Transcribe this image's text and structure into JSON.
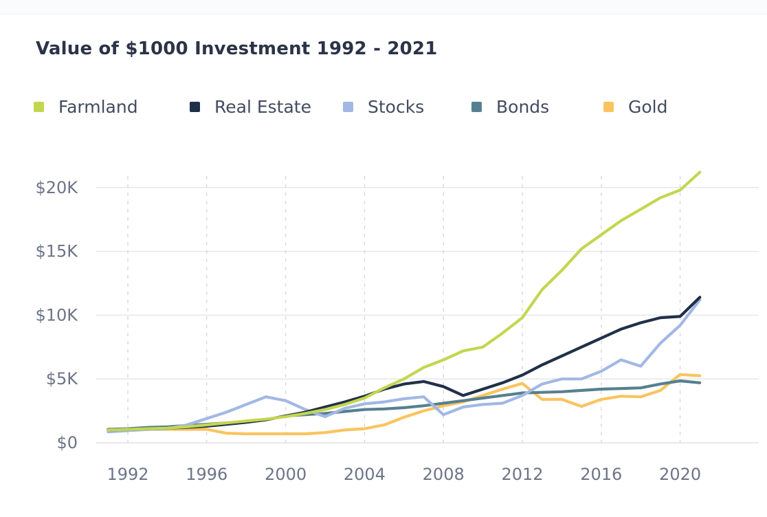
{
  "chart_data": {
    "type": "line",
    "title": "Value of $1000 Investment 1992 - 2021",
    "values_unit": "USD thousands",
    "x": [
      1991,
      1992,
      1993,
      1994,
      1995,
      1996,
      1997,
      1998,
      1999,
      2000,
      2001,
      2002,
      2003,
      2004,
      2005,
      2006,
      2007,
      2008,
      2009,
      2010,
      2011,
      2012,
      2013,
      2014,
      2015,
      2016,
      2017,
      2018,
      2019,
      2020,
      2021
    ],
    "series": [
      {
        "name": "Farmland",
        "color": "#c4d650",
        "values": [
          1.0,
          1.05,
          1.1,
          1.15,
          1.25,
          1.4,
          1.55,
          1.7,
          1.85,
          2.05,
          2.3,
          2.6,
          3.0,
          3.5,
          4.3,
          5.0,
          5.9,
          6.5,
          7.2,
          7.5,
          8.6,
          9.8,
          12.0,
          13.5,
          15.2,
          16.3,
          17.4,
          18.3,
          19.2,
          19.8,
          21.2
        ]
      },
      {
        "name": "Real Estate",
        "color": "#213049",
        "values": [
          1.0,
          1.05,
          1.1,
          1.15,
          1.2,
          1.3,
          1.45,
          1.6,
          1.8,
          2.1,
          2.4,
          2.8,
          3.2,
          3.65,
          4.2,
          4.6,
          4.8,
          4.4,
          3.7,
          4.2,
          4.7,
          5.3,
          6.1,
          6.8,
          7.5,
          8.2,
          8.9,
          9.4,
          9.8,
          9.9,
          11.4
        ]
      },
      {
        "name": "Stocks",
        "color": "#a2b8e4",
        "values": [
          0.85,
          0.95,
          1.05,
          1.1,
          1.4,
          1.9,
          2.4,
          3.0,
          3.6,
          3.3,
          2.6,
          2.05,
          2.7,
          3.05,
          3.2,
          3.45,
          3.6,
          2.2,
          2.8,
          3.0,
          3.1,
          3.7,
          4.6,
          5.0,
          5.0,
          5.6,
          6.5,
          6.0,
          7.8,
          9.2,
          11.2
        ]
      },
      {
        "name": "Bonds",
        "color": "#56808f",
        "values": [
          1.05,
          1.1,
          1.2,
          1.25,
          1.35,
          1.45,
          1.55,
          1.65,
          1.8,
          2.1,
          2.2,
          2.3,
          2.45,
          2.6,
          2.65,
          2.75,
          2.9,
          3.1,
          3.3,
          3.5,
          3.7,
          3.9,
          3.95,
          4.0,
          4.1,
          4.2,
          4.25,
          4.3,
          4.6,
          4.85,
          4.7
        ]
      },
      {
        "name": "Gold",
        "color": "#f9c45f",
        "values": [
          1.0,
          1.0,
          1.05,
          1.05,
          1.05,
          1.05,
          0.75,
          0.7,
          0.7,
          0.7,
          0.7,
          0.8,
          1.0,
          1.1,
          1.4,
          2.0,
          2.5,
          2.9,
          3.2,
          3.7,
          4.2,
          4.65,
          3.4,
          3.4,
          2.85,
          3.4,
          3.65,
          3.6,
          4.1,
          5.35,
          5.25
        ]
      }
    ],
    "ylim": [
      0,
      22
    ],
    "y_ticks": [
      {
        "value": 0,
        "label": "$0"
      },
      {
        "value": 5,
        "label": "$5K"
      },
      {
        "value": 10,
        "label": "$10K"
      },
      {
        "value": 15,
        "label": "$15K"
      },
      {
        "value": 20,
        "label": "$20K"
      }
    ],
    "x_ticks": [
      1992,
      1996,
      2000,
      2004,
      2008,
      2012,
      2016,
      2020
    ],
    "grid": {
      "horizontal": "solid",
      "vertical": "dashed"
    },
    "legend_position": "top"
  },
  "colors": {
    "title_text": "#2b3347",
    "legend_text": "#424b5f",
    "axis_text": "#6d7487",
    "gridline": "#e6e7ea",
    "gridline_dashed": "#d8dade"
  }
}
